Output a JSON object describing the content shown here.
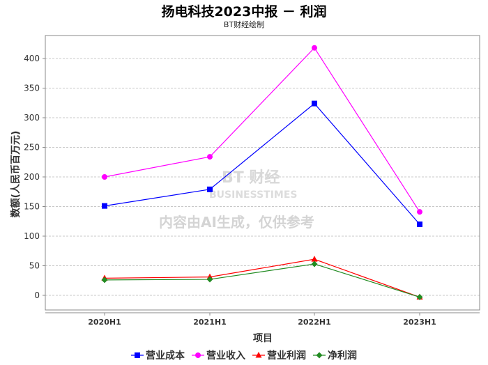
{
  "chart_data": {
    "type": "line",
    "title": "扬电科技2023中报 － 利润",
    "subtitle": "BT财经绘制",
    "xlabel": "项目",
    "ylabel": "数额(人民币百万元)",
    "categories": [
      "2020H1",
      "2021H1",
      "2022H1",
      "2023H1"
    ],
    "ylim": [
      -25,
      435
    ],
    "yticks": [
      0,
      50,
      100,
      150,
      200,
      250,
      300,
      350,
      400
    ],
    "grid": true,
    "legend_position": "bottom",
    "series": [
      {
        "name": "营业成本",
        "color": "#0000ff",
        "marker": "square",
        "values": [
          151,
          179,
          324,
          120
        ]
      },
      {
        "name": "营业收入",
        "color": "#ff00ff",
        "marker": "circle",
        "values": [
          200,
          234,
          418,
          141
        ]
      },
      {
        "name": "营业利润",
        "color": "#ff0000",
        "marker": "triangle",
        "values": [
          29,
          31,
          61,
          -3
        ]
      },
      {
        "name": "净利润",
        "color": "#228b22",
        "marker": "diamond",
        "values": [
          26,
          27,
          53,
          -3
        ]
      }
    ]
  },
  "watermark": {
    "logo": "BT财经",
    "logo_sub": "BUSINESSTIMES",
    "notice": "内容由AI生成，仅供参考"
  }
}
